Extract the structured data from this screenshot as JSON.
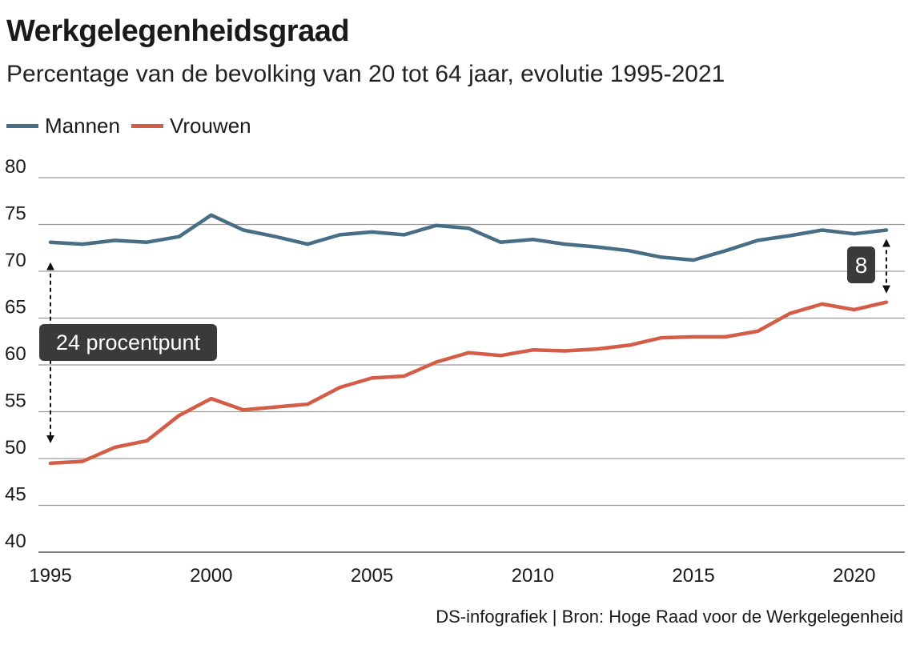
{
  "header": {
    "title": "Werkgelegenheidsgraad",
    "subtitle": "Percentage van de bevolking van 20 tot 64 jaar, evolutie 1995-2021"
  },
  "legend": [
    {
      "label": "Mannen",
      "color": "#476e85"
    },
    {
      "label": "Vrouwen",
      "color": "#d35d47"
    }
  ],
  "source": "DS-infografiek | Bron: Hoge Raad voor de Werkgelegenheid",
  "chart_data": {
    "type": "line",
    "x": [
      1995,
      1996,
      1997,
      1998,
      1999,
      2000,
      2001,
      2002,
      2003,
      2004,
      2005,
      2006,
      2007,
      2008,
      2009,
      2010,
      2011,
      2012,
      2013,
      2014,
      2015,
      2016,
      2017,
      2018,
      2019,
      2020,
      2021
    ],
    "series": [
      {
        "name": "Mannen",
        "color": "#476e85",
        "values": [
          73.1,
          72.9,
          73.3,
          73.1,
          73.7,
          76.0,
          74.4,
          73.7,
          72.9,
          73.9,
          74.2,
          73.9,
          74.9,
          74.6,
          73.1,
          73.4,
          72.9,
          72.6,
          72.2,
          71.5,
          71.2,
          72.2,
          73.3,
          73.8,
          74.4,
          74.0,
          74.4
        ]
      },
      {
        "name": "Vrouwen",
        "color": "#d35d47",
        "values": [
          49.5,
          49.7,
          51.2,
          51.9,
          54.6,
          56.4,
          55.2,
          55.5,
          55.8,
          57.6,
          58.6,
          58.8,
          60.3,
          61.3,
          61.0,
          61.6,
          61.5,
          61.7,
          62.1,
          62.9,
          63.0,
          63.0,
          63.6,
          65.5,
          66.5,
          65.9,
          66.7
        ]
      }
    ],
    "ylim": [
      40,
      80
    ],
    "yticks": [
      40,
      45,
      50,
      55,
      60,
      65,
      70,
      75,
      80
    ],
    "xticks": [
      1995,
      2000,
      2005,
      2010,
      2015,
      2020
    ],
    "grid": true,
    "annotations": [
      {
        "text": "24 procentpunt",
        "x": 1995,
        "from": 73.1,
        "to": 49.5
      },
      {
        "text": "8",
        "x": 2021,
        "from": 74.4,
        "to": 66.7
      }
    ]
  }
}
